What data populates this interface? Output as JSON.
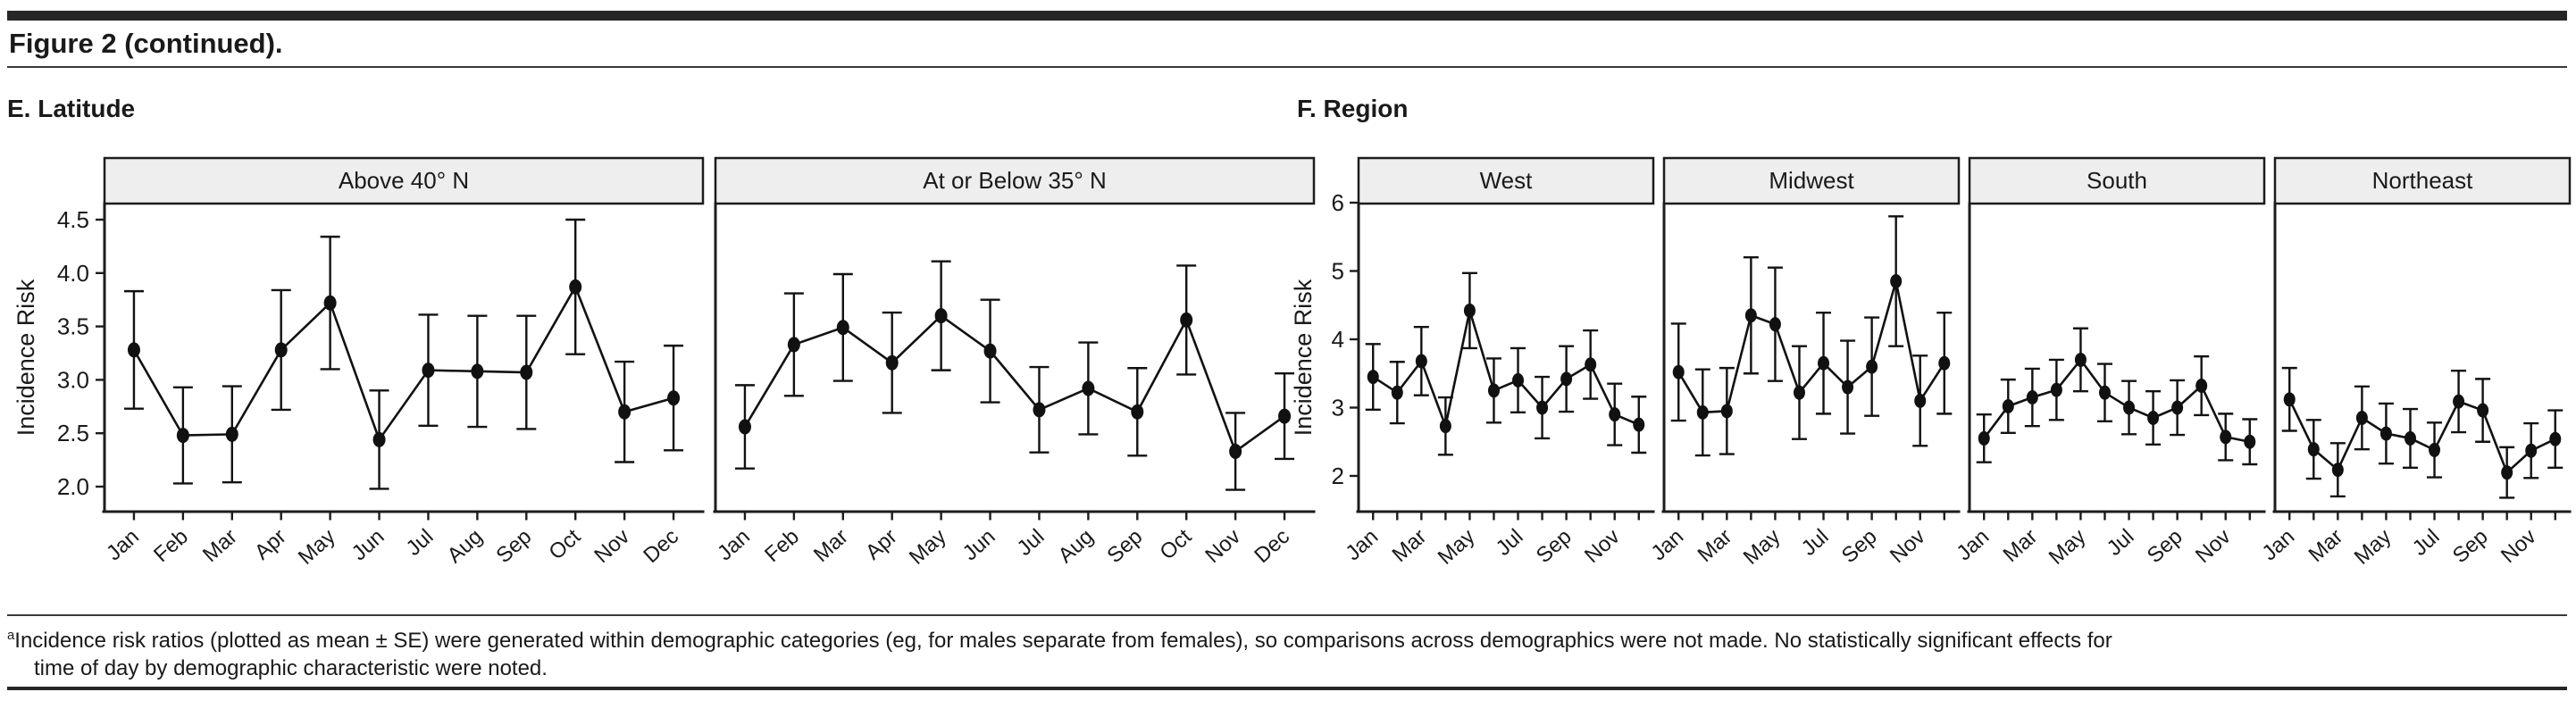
{
  "page": {
    "title": "Figure 2 (continued).",
    "footnote": {
      "marker": "a",
      "lines": [
        "Incidence risk ratios (plotted as mean ± SE) were generated within demographic categories (eg, for males separate from females), so comparisons across demographics were not made. No statistically significant effects for",
        "time of day by demographic characteristic were noted."
      ],
      "full_text": "Incidence risk ratios (plotted as mean ± SE) were generated within demographic categories (eg, for males separate from females), so comparisons across demographics were not made. No statistically significant effects for time of day by demographic characteristic were noted."
    }
  },
  "chart_data": [
    {
      "type": "line",
      "panel_label": "E. Latitude",
      "ylabel": "Incidence Risk",
      "error_bar_style": "mean ± SE",
      "grid": false,
      "legend": "none",
      "ylim": [
        1.77,
        4.65
      ],
      "yticks": [
        2.0,
        2.5,
        3.0,
        3.5,
        4.0,
        4.5
      ],
      "ytick_labels": [
        "2.0",
        "2.5",
        "3.0",
        "3.5",
        "4.0",
        "4.5"
      ],
      "categories": [
        "Jan",
        "Feb",
        "Mar",
        "Apr",
        "May",
        "Jun",
        "Jul",
        "Aug",
        "Sep",
        "Oct",
        "Nov",
        "Dec"
      ],
      "x_tick_label_every": 1,
      "facets": [
        {
          "name": "Above 40° N",
          "mean": [
            3.28,
            2.48,
            2.49,
            3.28,
            3.72,
            2.44,
            3.09,
            3.08,
            3.07,
            3.87,
            2.7,
            2.83
          ],
          "se": [
            0.55,
            0.45,
            0.45,
            0.56,
            0.62,
            0.46,
            0.52,
            0.52,
            0.53,
            0.63,
            0.47,
            0.49
          ]
        },
        {
          "name": "At or Below 35° N",
          "mean": [
            2.56,
            3.33,
            3.49,
            3.16,
            3.6,
            3.27,
            2.72,
            2.92,
            2.7,
            3.56,
            2.33,
            2.66
          ],
          "se": [
            0.39,
            0.48,
            0.5,
            0.47,
            0.51,
            0.48,
            0.4,
            0.43,
            0.41,
            0.51,
            0.36,
            0.4
          ]
        }
      ]
    },
    {
      "type": "line",
      "panel_label": "F. Region",
      "ylabel": "Incidence Risk",
      "error_bar_style": "mean ± SE",
      "grid": false,
      "legend": "none",
      "ylim": [
        1.48,
        6.0
      ],
      "yticks": [
        2,
        3,
        4,
        5,
        6
      ],
      "ytick_labels": [
        "2",
        "3",
        "4",
        "5",
        "6"
      ],
      "categories": [
        "Jan",
        "Feb",
        "Mar",
        "Apr",
        "May",
        "Jun",
        "Jul",
        "Aug",
        "Sep",
        "Oct",
        "Nov",
        "Dec"
      ],
      "x_tick_label_every": 2,
      "facets": [
        {
          "name": "West",
          "mean": [
            3.45,
            3.22,
            3.68,
            2.73,
            4.42,
            3.25,
            3.4,
            3.0,
            3.42,
            3.63,
            2.9,
            2.75
          ],
          "se": [
            0.48,
            0.45,
            0.5,
            0.42,
            0.55,
            0.47,
            0.47,
            0.45,
            0.48,
            0.5,
            0.45,
            0.41
          ]
        },
        {
          "name": "Midwest",
          "mean": [
            3.52,
            2.93,
            2.95,
            4.35,
            4.22,
            3.22,
            3.65,
            3.3,
            3.6,
            4.85,
            3.1,
            3.65
          ],
          "se": [
            0.71,
            0.63,
            0.63,
            0.85,
            0.83,
            0.68,
            0.74,
            0.68,
            0.72,
            0.95,
            0.66,
            0.74
          ]
        },
        {
          "name": "South",
          "mean": [
            2.55,
            3.02,
            3.15,
            3.26,
            3.7,
            3.22,
            3.0,
            2.85,
            3.0,
            3.32,
            2.57,
            2.5
          ],
          "se": [
            0.35,
            0.39,
            0.42,
            0.44,
            0.46,
            0.42,
            0.39,
            0.39,
            0.4,
            0.43,
            0.34,
            0.33
          ]
        },
        {
          "name": "Northeast",
          "mean": [
            3.12,
            2.39,
            2.09,
            2.85,
            2.62,
            2.55,
            2.38,
            3.09,
            2.96,
            2.05,
            2.37,
            2.54
          ],
          "se": [
            0.46,
            0.43,
            0.39,
            0.46,
            0.44,
            0.43,
            0.4,
            0.45,
            0.46,
            0.37,
            0.4,
            0.42
          ]
        }
      ]
    }
  ]
}
